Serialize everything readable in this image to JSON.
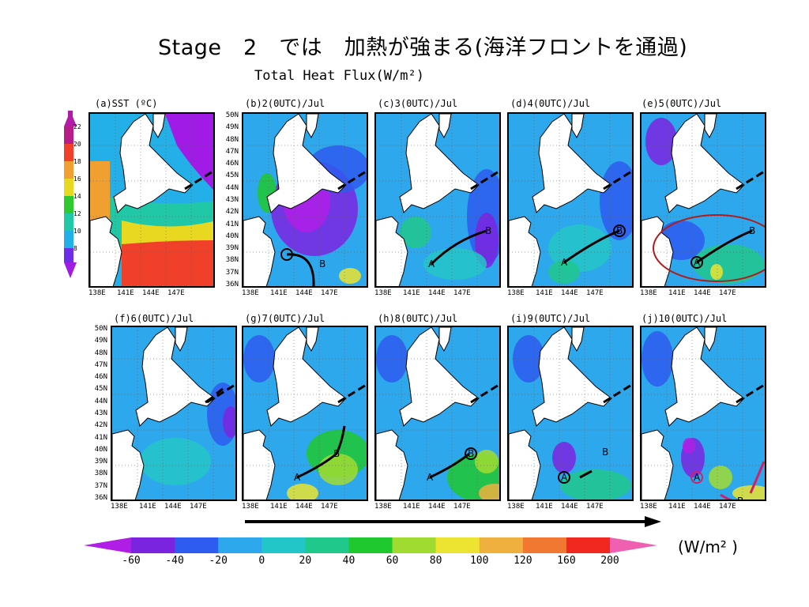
{
  "slide": {
    "title": "Stage　2　では　加熱が強まる(海洋フロントを通過)",
    "subtitle": "Total Heat Flux(W/m²)",
    "units_label": "(W/m² )"
  },
  "latitude_ticks": [
    "50N",
    "49N",
    "48N",
    "47N",
    "46N",
    "45N",
    "44N",
    "43N",
    "42N",
    "41N",
    "40N",
    "39N",
    "38N",
    "37N",
    "36N"
  ],
  "longitude_ticks": [
    "138E",
    "141E",
    "144E",
    "147E"
  ],
  "sst_colorbar": {
    "ticks": [
      "22",
      "20",
      "18",
      "16",
      "14",
      "12",
      "10",
      "8"
    ],
    "colors": [
      "#b31aa8",
      "#a01ce6",
      "#6c2ee8",
      "#2e6ef0",
      "#23b0e8",
      "#20c8a8",
      "#2ec830",
      "#e8d820",
      "#f0a030",
      "#f0402a",
      "#b81c88"
    ]
  },
  "flux_colorbar": {
    "ticks": [
      "-60",
      "-40",
      "-20",
      "0",
      "20",
      "40",
      "60",
      "80",
      "100",
      "120",
      "160",
      "200"
    ],
    "colors": [
      "#b01ee6",
      "#7a24e0",
      "#2e5cf0",
      "#2ea8ec",
      "#23c6c8",
      "#20c88c",
      "#20c830",
      "#a0dc30",
      "#ece430",
      "#f0b040",
      "#f07830",
      "#f02820",
      "#f060b0"
    ]
  },
  "panels": [
    {
      "id": "a",
      "label": "(a)SST (ºC)",
      "kind": "sst"
    },
    {
      "id": "b",
      "label": "(b)2(0UTC)/Jul",
      "kind": "flux"
    },
    {
      "id": "c",
      "label": "(c)3(0UTC)/Jul",
      "kind": "flux"
    },
    {
      "id": "d",
      "label": "(d)4(0UTC)/Jul",
      "kind": "flux"
    },
    {
      "id": "e",
      "label": "(e)5(0UTC)/Jul",
      "kind": "flux"
    },
    {
      "id": "f",
      "label": "(f)6(0UTC)/Jul",
      "kind": "flux"
    },
    {
      "id": "g",
      "label": "(g)7(0UTC)/Jul",
      "kind": "flux"
    },
    {
      "id": "h",
      "label": "(h)8(0UTC)/Jul",
      "kind": "flux"
    },
    {
      "id": "i",
      "label": "(i)9(0UTC)/Jul",
      "kind": "flux"
    },
    {
      "id": "j",
      "label": "(j)10(0UTC)/Jul",
      "kind": "flux"
    }
  ],
  "markers": {
    "a_label": "A",
    "b_label": "B"
  },
  "colors": {
    "land": "#ffffff",
    "track": "#000000",
    "highlight_ellipse": "#b01c1c",
    "magenta_track": "#d0206a"
  }
}
